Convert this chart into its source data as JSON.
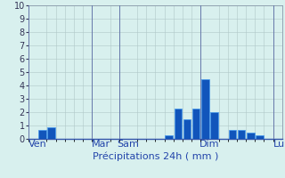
{
  "title": "Précipitations 24h ( mm )",
  "ylim": [
    0,
    10
  ],
  "yticks": [
    0,
    1,
    2,
    3,
    4,
    5,
    6,
    7,
    8,
    9,
    10
  ],
  "background_color": "#d8f0ee",
  "grid_color": "#b0c8c8",
  "bar_color": "#1155bb",
  "bar_edge_color": "#4499ee",
  "total_bars": 28,
  "bar_values": [
    0,
    0.7,
    0.9,
    0,
    0,
    0,
    0,
    0,
    0,
    0,
    0,
    0,
    0,
    0,
    0,
    0.3,
    2.3,
    1.5,
    2.3,
    4.5,
    2.0,
    0,
    0.65,
    0.65,
    0.5,
    0.3,
    0,
    0
  ],
  "day_labels": [
    "Ven",
    "Mar",
    "Sam",
    "Dim",
    "Lun"
  ],
  "day_positions": [
    0.5,
    7.5,
    10.5,
    19.5,
    27.5
  ],
  "day_line_positions": [
    0,
    7,
    10,
    19,
    27
  ],
  "xlabel_fontsize": 8,
  "tick_fontsize": 7,
  "label_color": "#2244aa"
}
